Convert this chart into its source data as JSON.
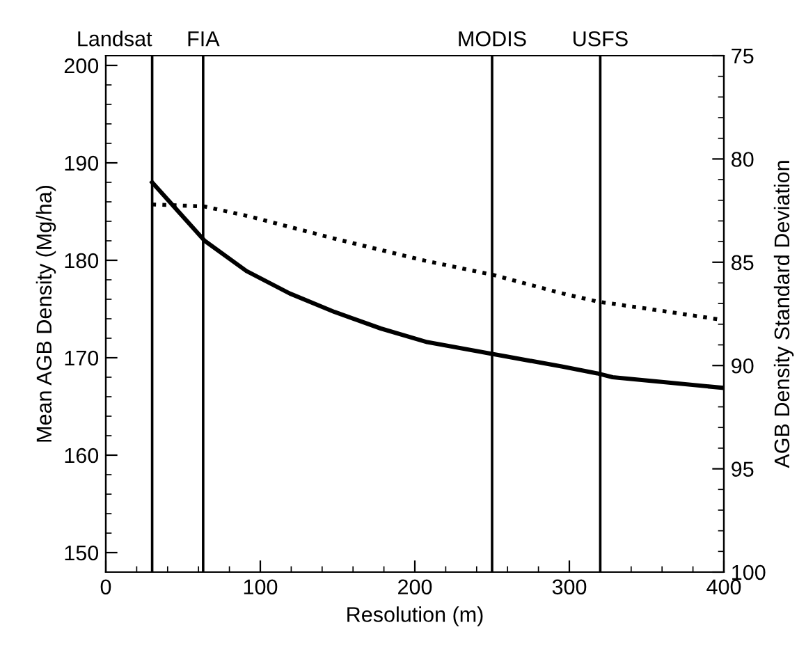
{
  "chart_data": {
    "type": "line",
    "xlabel": "Resolution (m)",
    "ylabel": "Mean AGB Density (Mg/ha)",
    "y2label": "AGB Density Standard Deviation",
    "xlim": [
      0,
      400
    ],
    "xticks": [
      0,
      100,
      200,
      300,
      400
    ],
    "ylim": [
      148,
      201
    ],
    "yticks": [
      150,
      160,
      170,
      180,
      190,
      200
    ],
    "y2lim": [
      100,
      75
    ],
    "y2ticks": [
      100,
      95,
      90,
      85,
      80,
      75
    ],
    "grid": false,
    "legend": false,
    "ref_lines": [
      {
        "axis": "x",
        "value": 30,
        "label": "Landsat",
        "color": "#000000"
      },
      {
        "axis": "x",
        "value": 63,
        "label": "FIA",
        "color": "#000000"
      },
      {
        "axis": "x",
        "value": 250,
        "label": "MODIS",
        "color": "#000000"
      },
      {
        "axis": "x",
        "value": 320,
        "label": "USFS",
        "color": "#000000"
      }
    ],
    "series": [
      {
        "color": "#000000",
        "line_style": "solid",
        "x": [
          30,
          64,
          91,
          119,
          148,
          178,
          208,
          250,
          295,
          318,
          328,
          361,
          400
        ],
        "values": [
          188.0,
          182.0,
          178.9,
          176.6,
          174.7,
          173.0,
          171.6,
          170.4,
          169.1,
          168.4,
          168.0,
          167.5,
          166.9
        ]
      },
      {
        "color": "#000000",
        "line_style": "dotted",
        "axis": "y2",
        "x": [
          30,
          64,
          94,
          145,
          205,
          250,
          295,
          318,
          355,
          400
        ],
        "values": [
          82.2,
          82.3,
          82.8,
          83.8,
          84.9,
          85.6,
          86.5,
          86.9,
          87.3,
          87.8
        ]
      }
    ]
  }
}
